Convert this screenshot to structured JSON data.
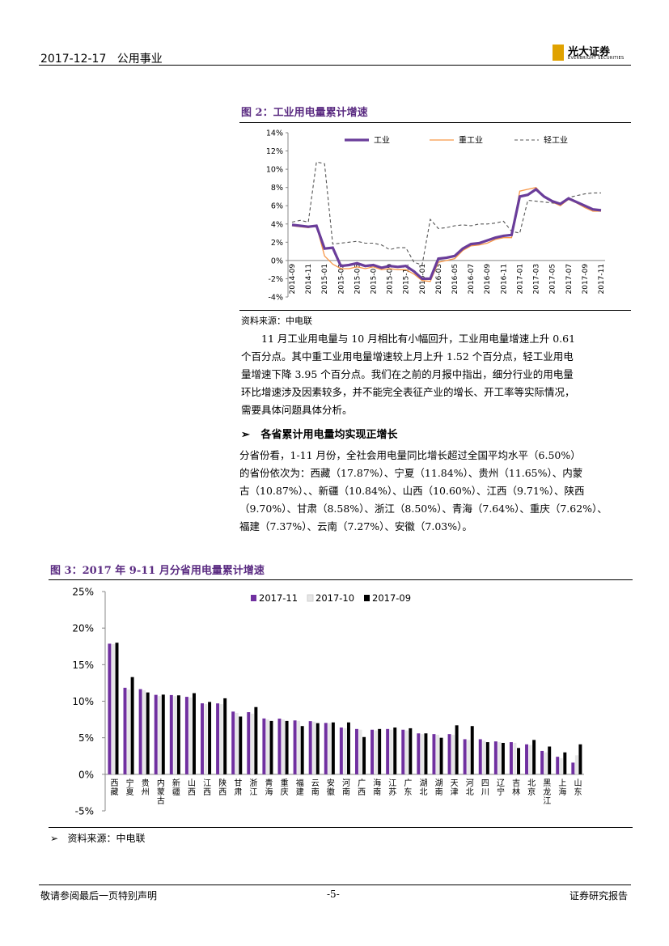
{
  "header": {
    "date": "2017-12-17",
    "sector": "公用事业",
    "logo_text": "光大证券",
    "logo_sub": "EVERBRIGHT SECURITIES"
  },
  "fig2": {
    "title": "图 2：工业用电量累计增速",
    "source": "资料来源：中电联",
    "chart_data": {
      "type": "line",
      "x": [
        "2014-09",
        "2014-10",
        "2014-11",
        "2014-12",
        "2015-01",
        "2015-02",
        "2015-03",
        "2015-04",
        "2015-05",
        "2015-06",
        "2015-07",
        "2015-08",
        "2015-09",
        "2015-10",
        "2015-11",
        "2015-12",
        "2016-01",
        "2016-02",
        "2016-03",
        "2016-04",
        "2016-05",
        "2016-06",
        "2016-07",
        "2016-08",
        "2016-09",
        "2016-10",
        "2016-11",
        "2016-12",
        "2017-01",
        "2017-02",
        "2017-03",
        "2017-04",
        "2017-05",
        "2017-06",
        "2017-07",
        "2017-08",
        "2017-09",
        "2017-10",
        "2017-11"
      ],
      "xticks": [
        "2014-09",
        "2014-11",
        "2015-01",
        "2015-03",
        "2015-05",
        "2015-07",
        "2015-09",
        "2015-11",
        "2016-01",
        "2016-03",
        "2016-05",
        "2016-07",
        "2016-09",
        "2016-11",
        "2017-01",
        "2017-03",
        "2017-05",
        "2017-07",
        "2017-09",
        "2017-11"
      ],
      "yticks": [
        "14%",
        "12%",
        "10%",
        "8%",
        "6%",
        "4%",
        "2%",
        "0%",
        "-2%",
        "-4%"
      ],
      "ylim": [
        -4,
        14
      ],
      "series": [
        {
          "name": "工业",
          "color": "#6a3d9a",
          "values": [
            3.9,
            3.8,
            3.7,
            3.8,
            1.3,
            1.4,
            -0.6,
            -0.5,
            -0.3,
            -0.6,
            -0.5,
            -0.8,
            -0.6,
            -0.7,
            -0.6,
            -1.2,
            -2.0,
            -2.0,
            0.2,
            0.3,
            0.5,
            1.3,
            1.8,
            1.9,
            2.2,
            2.5,
            2.7,
            2.8,
            7.0,
            7.2,
            7.8,
            7.0,
            6.5,
            6.2,
            6.8,
            6.4,
            6.0,
            5.6,
            5.5
          ]
        },
        {
          "name": "重工业",
          "color": "#f79646",
          "values": [
            3.8,
            3.7,
            3.6,
            3.8,
            0.5,
            -0.4,
            -0.9,
            -0.9,
            -0.7,
            -0.9,
            -0.7,
            -1.0,
            -0.9,
            -1.0,
            -1.0,
            -1.5,
            -2.2,
            -2.3,
            -0.2,
            0.0,
            0.2,
            1.1,
            1.6,
            1.7,
            1.9,
            2.3,
            2.5,
            2.5,
            7.6,
            7.8,
            8.0,
            7.0,
            6.4,
            6.0,
            6.7,
            6.3,
            5.8,
            5.4,
            5.4
          ]
        },
        {
          "name": "轻工业",
          "color": "#555555",
          "values": [
            4.2,
            4.4,
            4.2,
            10.8,
            10.6,
            1.8,
            1.9,
            2.0,
            2.1,
            1.9,
            1.9,
            1.7,
            1.2,
            1.4,
            1.4,
            -0.2,
            -0.5,
            4.5,
            3.5,
            3.6,
            3.8,
            3.9,
            3.8,
            4.0,
            4.0,
            4.1,
            4.3,
            3.2,
            3.0,
            6.6,
            6.5,
            6.4,
            6.3,
            6.2,
            6.9,
            7.1,
            7.3,
            7.4,
            7.4
          ]
        }
      ]
    }
  },
  "para1": {
    "l1": "11 月工业用电量与 10 月相比有小幅回升，工业用电量增速上升 0.61",
    "l2": "个百分点。其中重工业用电量增速较上月上升 1.52 个百分点，轻工业用电",
    "l3": "量增速下降 3.95 个百分点。我们在之前的月报中指出，细分行业的用电量",
    "l4": "环比增速涉及因素较多，并不能完全表征产业的增长、开工率等实际情况，",
    "l5": "需要具体问题具体分析。"
  },
  "bullet1": {
    "marker": "➢",
    "text": "各省累计用电量均实现正增长"
  },
  "para2": {
    "l1": "分省份看，1-11 月份，全社会用电量同比增长超过全国平均水平（6.50%）",
    "l2": "的省份依次为：西藏（17.87%）、宁夏（11.84%）、贵州（11.65%）、内蒙",
    "l3": "古（10.87%）、、新疆（10.84%）、山西（10.60%）、江西（9.71%）、陕西",
    "l4": "（9.70%）、甘肃（8.58%）、浙江（8.50%）、青海（7.64%）、重庆（7.62%）、",
    "l5": "福建（7.37%）、云南（7.27%）、安徽（7.03%）。"
  },
  "fig3": {
    "title": "图 3：2017 年 9-11 月分省用电量累计增速",
    "source_marker": "➢",
    "source": "资料来源：中电联",
    "chart_data": {
      "type": "bar",
      "categories": [
        "西藏",
        "宁夏",
        "贵州",
        "内蒙古",
        "新疆",
        "山西",
        "江西",
        "陕西",
        "甘肃",
        "浙江",
        "青海",
        "重庆",
        "福建",
        "云南",
        "安徽",
        "河南",
        "广西",
        "海南",
        "江苏",
        "广东",
        "湖北",
        "湖南",
        "天津",
        "河北",
        "四川",
        "辽宁",
        "吉林",
        "北京",
        "黑龙江",
        "上海",
        "山东"
      ],
      "yticks": [
        "25%",
        "20%",
        "15%",
        "10%",
        "5%",
        "0%",
        "-5%"
      ],
      "ylim": [
        -5,
        25
      ],
      "series": [
        {
          "name": "2017-11",
          "color": "#7030a0",
          "values": [
            17.87,
            11.84,
            11.65,
            10.87,
            10.84,
            10.6,
            9.71,
            9.7,
            8.58,
            8.5,
            7.64,
            7.62,
            7.37,
            7.27,
            7.03,
            6.4,
            6.2,
            6.1,
            6.2,
            6.1,
            5.6,
            5.5,
            5.5,
            4.8,
            4.8,
            4.5,
            4.4,
            4.1,
            3.2,
            2.4,
            1.6
          ]
        },
        {
          "name": "2017-10",
          "color": "#e6e6e6",
          "values": [
            17.8,
            11.6,
            11.5,
            10.7,
            10.7,
            10.5,
            9.6,
            9.6,
            8.4,
            8.3,
            7.5,
            7.5,
            7.3,
            7.2,
            7.0,
            6.3,
            6.1,
            6.0,
            6.1,
            6.0,
            5.5,
            5.4,
            5.4,
            4.7,
            4.6,
            4.4,
            4.3,
            4.0,
            3.0,
            2.2,
            2.6
          ]
        },
        {
          "name": "2017-09",
          "color": "#000000",
          "values": [
            18.0,
            13.3,
            11.2,
            10.9,
            10.8,
            11.1,
            9.9,
            10.4,
            7.9,
            9.2,
            7.3,
            7.3,
            6.6,
            7.0,
            7.1,
            7.1,
            5.1,
            6.2,
            6.4,
            6.3,
            5.6,
            5.0,
            6.7,
            6.6,
            4.4,
            4.3,
            3.6,
            4.7,
            3.8,
            3.0,
            4.1
          ]
        }
      ]
    }
  },
  "footer": {
    "left": "敬请参阅最后一页特别声明",
    "center": "-5-",
    "right": "证券研究报告"
  }
}
